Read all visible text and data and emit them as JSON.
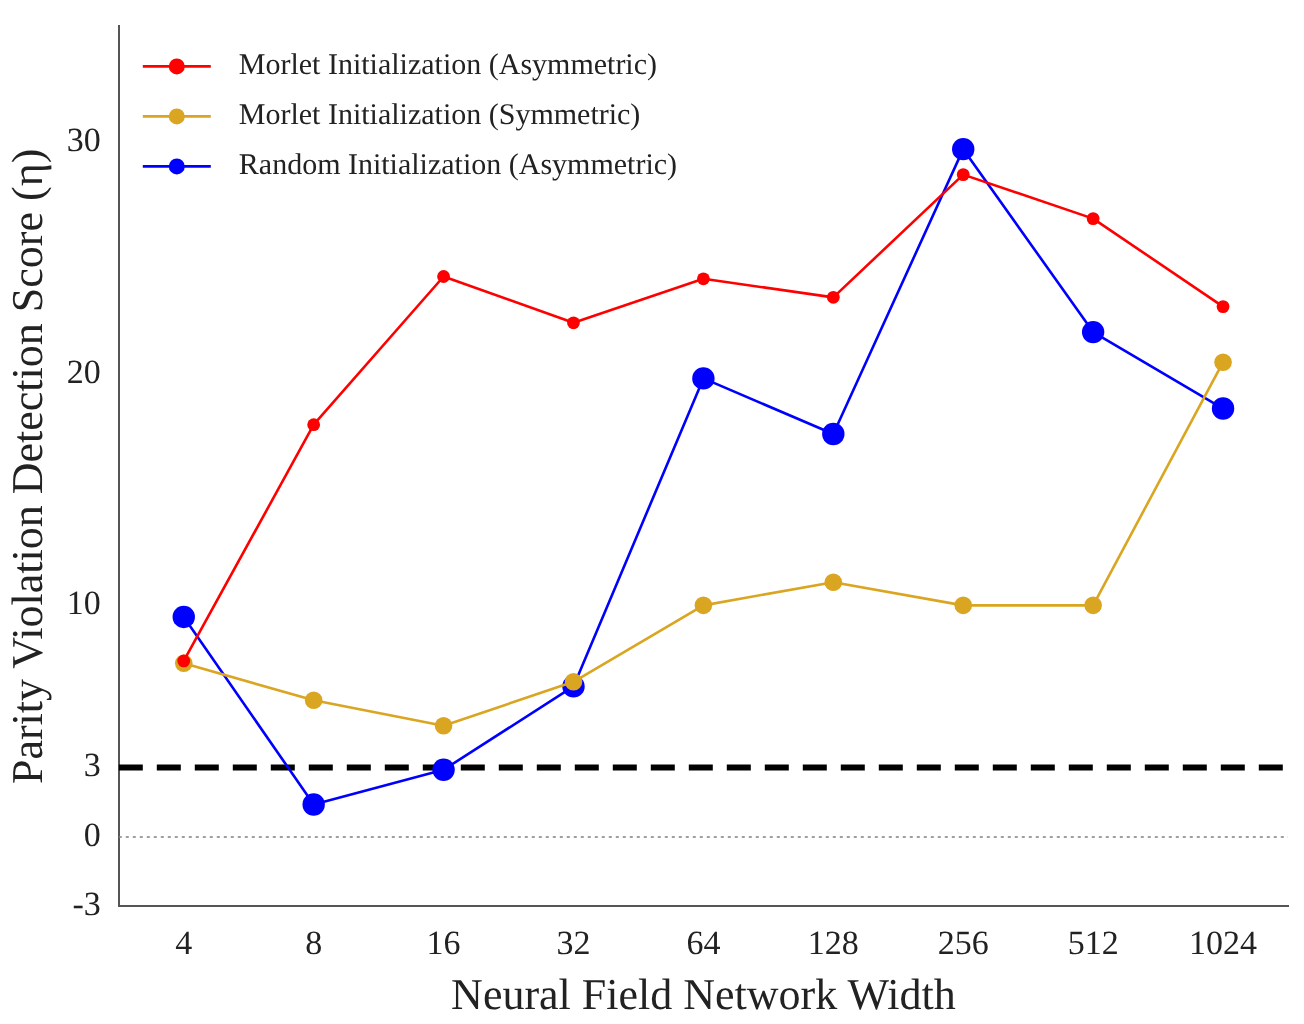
{
  "chart_data": {
    "type": "line",
    "xlabel": "Neural Field Network Width",
    "ylabel": "Parity Violation Detection Score (η)",
    "categories": [
      "4",
      "8",
      "16",
      "32",
      "64",
      "128",
      "256",
      "512",
      "1024"
    ],
    "series": [
      {
        "name": "Morlet Initialization (Asymmetric)",
        "color": "#ff0000",
        "values": [
          7.6,
          17.8,
          24.2,
          22.2,
          24.1,
          23.3,
          28.6,
          26.7,
          22.9
        ]
      },
      {
        "name": "Morlet Initialization (Symmetric)",
        "color": "#daa520",
        "values": [
          7.5,
          5.9,
          4.8,
          6.7,
          10,
          11.0,
          10,
          10,
          20.5
        ]
      },
      {
        "name": "Random Initialization (Asymmetric)",
        "color": "#0000ff",
        "values": [
          9.5,
          1.4,
          2.9,
          6.5,
          19.8,
          17.4,
          29.7,
          21.8,
          18.5
        ]
      }
    ],
    "ylim": [
      -3,
      35
    ],
    "yticks": [
      -3,
      0,
      3,
      10,
      20,
      30
    ],
    "grid": false,
    "legend": "top left",
    "marker": "circle",
    "line_style": "solid",
    "ref_lines": [
      {
        "axis": "y",
        "value": 3,
        "color": "#000000",
        "line_style": "dashed"
      },
      {
        "axis": "y",
        "value": 0,
        "color": "#808080",
        "line_style": "dotted"
      }
    ]
  }
}
